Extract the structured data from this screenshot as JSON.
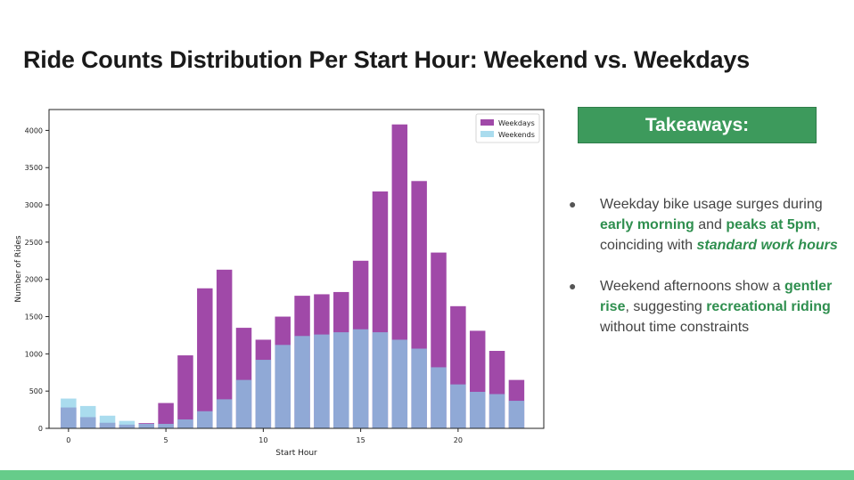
{
  "slide": {
    "title": "Ride Counts Distribution Per Start Hour: Weekend vs. Weekdays",
    "takeaways_label": "Takeaways:",
    "bullets": [
      [
        {
          "text": "Weekday bike usage surges during ",
          "style": "normal"
        },
        {
          "text": "early morning",
          "style": "bold"
        },
        {
          "text": " and ",
          "style": "normal"
        },
        {
          "text": "peaks at 5pm",
          "style": "bold"
        },
        {
          "text": ", coinciding with ",
          "style": "normal"
        },
        {
          "text": "standard work hours",
          "style": "bolditalic"
        }
      ],
      [
        {
          "text": "Weekend afternoons show a ",
          "style": "normal"
        },
        {
          "text": "gentler rise",
          "style": "bold"
        },
        {
          "text": ", suggesting ",
          "style": "normal"
        },
        {
          "text": "recreational riding",
          "style": "bold"
        },
        {
          "text": " without time constraints",
          "style": "normal"
        }
      ]
    ],
    "colors": {
      "accent": "#3d9a5c",
      "highlight": "#2f8f4f",
      "footer": "#66cc8a"
    }
  },
  "chart_data": {
    "type": "bar",
    "title": "",
    "xlabel": "Start Hour",
    "ylabel": "Number of Rides",
    "x": [
      0,
      1,
      2,
      3,
      4,
      5,
      6,
      7,
      8,
      9,
      10,
      11,
      12,
      13,
      14,
      15,
      16,
      17,
      18,
      19,
      20,
      21,
      22,
      23
    ],
    "series": [
      {
        "name": "Weekdays",
        "color": "#9b3fa3",
        "values": [
          280,
          150,
          75,
          50,
          70,
          340,
          980,
          1880,
          2130,
          1350,
          1190,
          1500,
          1780,
          1800,
          1830,
          2250,
          3180,
          4080,
          3320,
          2360,
          1640,
          1310,
          1040,
          650
        ]
      },
      {
        "name": "Weekends",
        "color": "#89cfe8",
        "values": [
          400,
          300,
          170,
          100,
          60,
          60,
          120,
          230,
          390,
          650,
          920,
          1120,
          1240,
          1260,
          1290,
          1330,
          1290,
          1190,
          1070,
          820,
          590,
          490,
          460,
          370
        ]
      }
    ],
    "xticks": [
      0,
      5,
      10,
      15,
      20
    ],
    "yticks": [
      0,
      500,
      1000,
      1500,
      2000,
      2500,
      3000,
      3500,
      4000
    ],
    "ylim": [
      0,
      4280
    ],
    "xlim": [
      -1,
      24.4
    ],
    "legend_position": "top-right",
    "grid": false
  }
}
